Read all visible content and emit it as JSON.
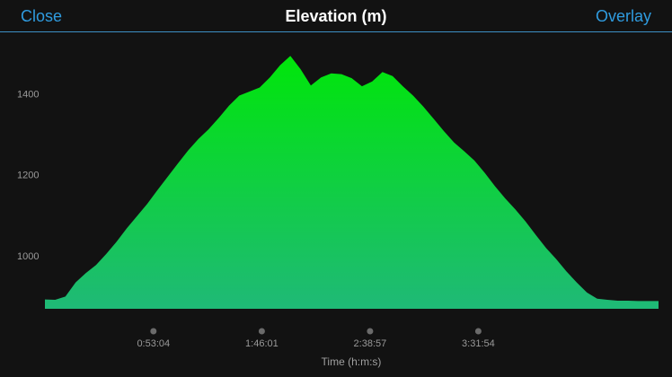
{
  "nav": {
    "close_label": "Close",
    "title": "Elevation (m)",
    "overlay_label": "Overlay"
  },
  "colors": {
    "background": "#121212",
    "accent": "#2f9bdf",
    "fill_top": "#00e60a",
    "fill_bottom": "#1fb977",
    "marker": "#6b6b6b"
  },
  "chart_data": {
    "type": "area",
    "title": "Elevation (m)",
    "xlabel": "Time (h:m:s)",
    "ylabel": "",
    "ylim": [
      870,
      1520
    ],
    "xlim": [
      0,
      18000
    ],
    "y_ticks": [
      1000,
      1200,
      1400
    ],
    "y_tick_labels": [
      "1000",
      "1200",
      "1400"
    ],
    "x_ticks": [
      3184,
      6361,
      9537,
      12714
    ],
    "x_tick_labels": [
      "0:53:04",
      "1:46:01",
      "2:38:57",
      "3:31:54"
    ],
    "grid": false,
    "series": [
      {
        "x": [
          0,
          300,
          600,
          900,
          1200,
          1500,
          1800,
          2100,
          2400,
          2700,
          3000,
          3300,
          3600,
          3900,
          4200,
          4500,
          4800,
          5100,
          5400,
          5700,
          6000,
          6300,
          6600,
          6900,
          7200,
          7500,
          7800,
          8100,
          8400,
          8700,
          9000,
          9300,
          9600,
          9900,
          10200,
          10500,
          10800,
          11100,
          11400,
          11700,
          12000,
          12300,
          12600,
          12900,
          13200,
          13500,
          13800,
          14100,
          14400,
          14700,
          15000,
          15300,
          15600,
          15900,
          16200,
          16500,
          16800,
          17100,
          17400,
          17700,
          18000
        ],
        "values": [
          893,
          892,
          900,
          935,
          958,
          978,
          1005,
          1035,
          1068,
          1098,
          1128,
          1162,
          1195,
          1228,
          1260,
          1288,
          1312,
          1340,
          1370,
          1395,
          1405,
          1415,
          1440,
          1470,
          1493,
          1460,
          1420,
          1440,
          1450,
          1448,
          1438,
          1418,
          1430,
          1453,
          1443,
          1418,
          1395,
          1368,
          1338,
          1308,
          1280,
          1258,
          1235,
          1205,
          1172,
          1142,
          1115,
          1085,
          1052,
          1020,
          992,
          962,
          935,
          910,
          895,
          892,
          890,
          890,
          889,
          889,
          889
        ]
      }
    ]
  }
}
